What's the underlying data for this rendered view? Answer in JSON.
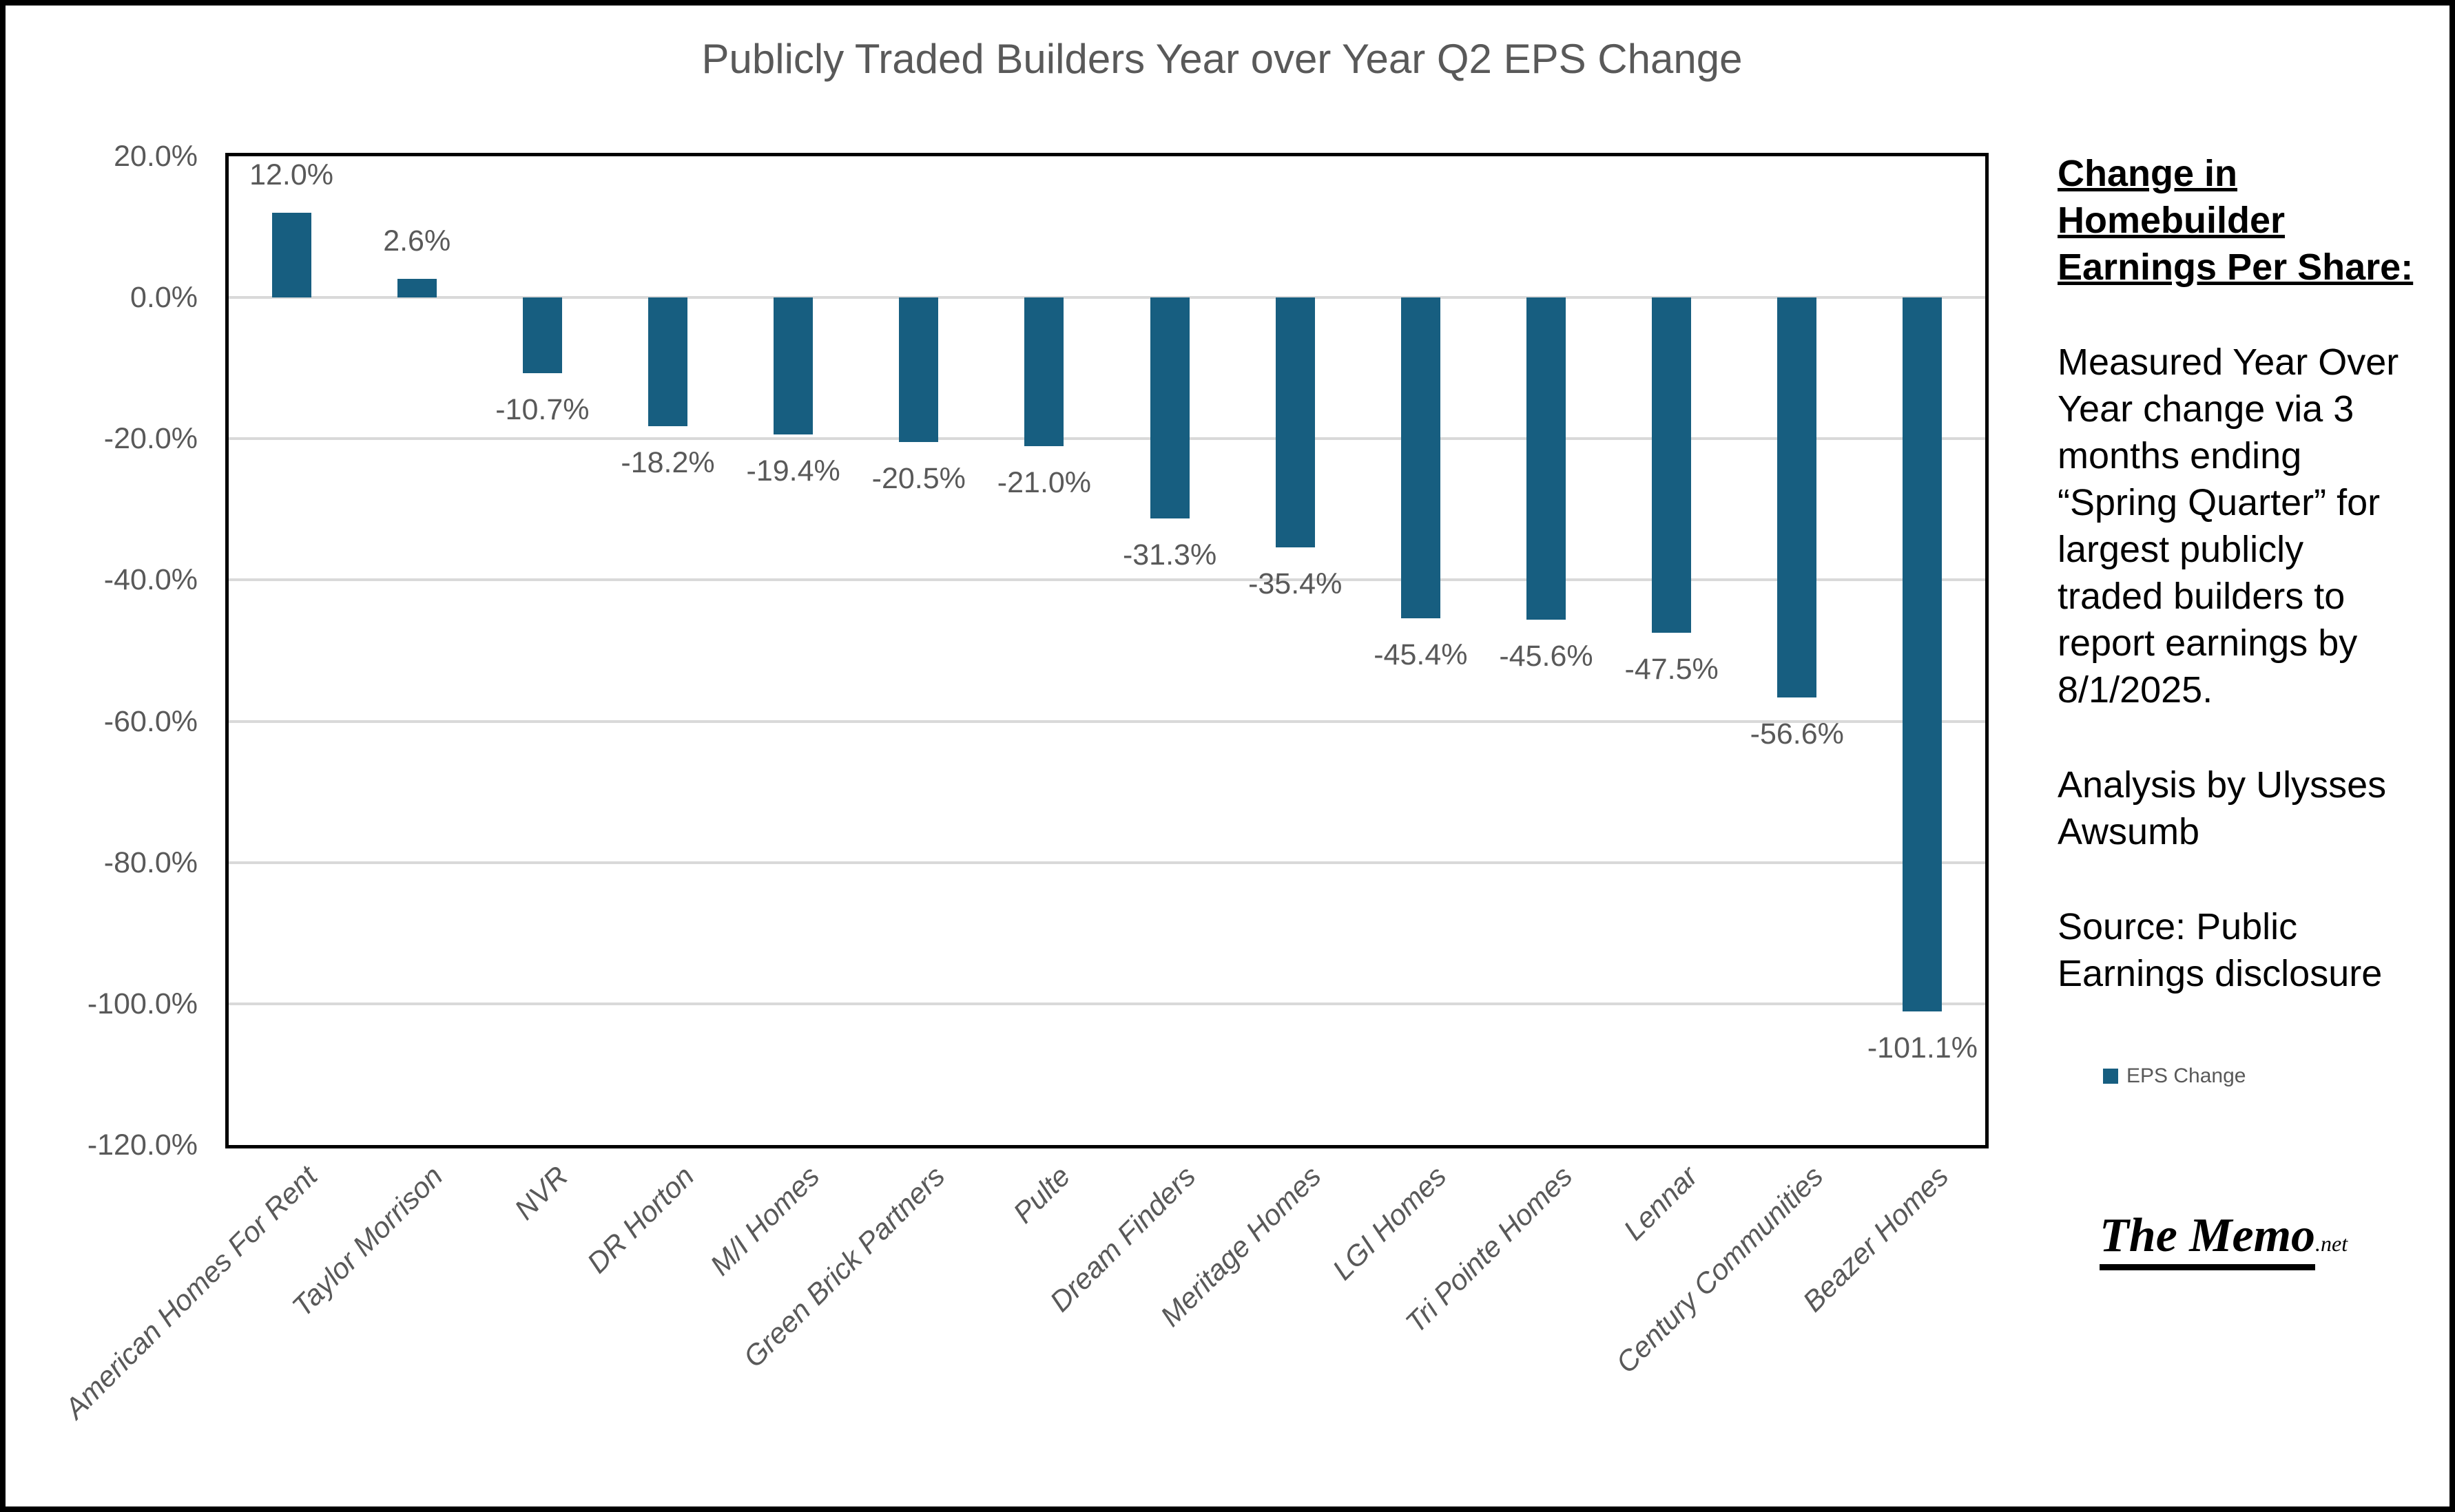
{
  "chart_data": {
    "type": "bar",
    "title": "Publicly Traded Builders Year over Year Q2 EPS Change",
    "categories": [
      "American Homes For Rent",
      "Taylor Morrison",
      "NVR",
      "DR Horton",
      "M/I Homes",
      "Green Brick Partners",
      "Pulte",
      "Dream Finders",
      "Meritage Homes",
      "LGI Homes",
      "Tri Pointe Homes",
      "Lennar",
      "Century Communities",
      "Beazer Homes"
    ],
    "values": [
      12.0,
      2.6,
      -10.7,
      -18.2,
      -19.4,
      -20.5,
      -21.0,
      -31.3,
      -35.4,
      -45.4,
      -45.6,
      -47.5,
      -56.6,
      -101.1
    ],
    "data_labels": [
      "12.0%",
      "2.6%",
      "-10.7%",
      "-18.2%",
      "-19.4%",
      "-20.5%",
      "-21.0%",
      "-31.3%",
      "-35.4%",
      "-45.4%",
      "-45.6%",
      "-47.5%",
      "-56.6%",
      "-101.1%"
    ],
    "series": [
      {
        "name": "EPS Change"
      }
    ],
    "xlabel": "",
    "ylabel": "",
    "ylim": [
      -120,
      20
    ],
    "yticks": [
      {
        "value": 20,
        "label": "20.0%"
      },
      {
        "value": 0,
        "label": "0.0%"
      },
      {
        "value": -20,
        "label": "-20.0%"
      },
      {
        "value": -40,
        "label": "-40.0%"
      },
      {
        "value": -60,
        "label": "-60.0%"
      },
      {
        "value": -80,
        "label": "-80.0%"
      },
      {
        "value": -100,
        "label": "-100.0%"
      },
      {
        "value": -120,
        "label": "-120.0%"
      }
    ],
    "grid": true,
    "legend_position": "right",
    "bar_color": "#175E80"
  },
  "legend": {
    "label": "EPS Change",
    "marker_color": "#175E80"
  },
  "side_panel": {
    "heading": "Change in Homebuilder Earnings Per Share:",
    "para1": "Measured Year Over Year change via 3 months ending “Spring Quarter” for largest publicly traded builders to report earnings by 8/1/2025.",
    "para2": "Analysis by Ulysses Awsumb",
    "para3": "Source: Public Earnings disclosure"
  },
  "logo": {
    "main": "The Memo",
    "suffix": ".net"
  },
  "colors": {
    "bar": "#175E80",
    "gridline": "#D9D9D9",
    "chart_text": "#595959",
    "panel_text": "#000000",
    "plot_border": "#000000"
  }
}
